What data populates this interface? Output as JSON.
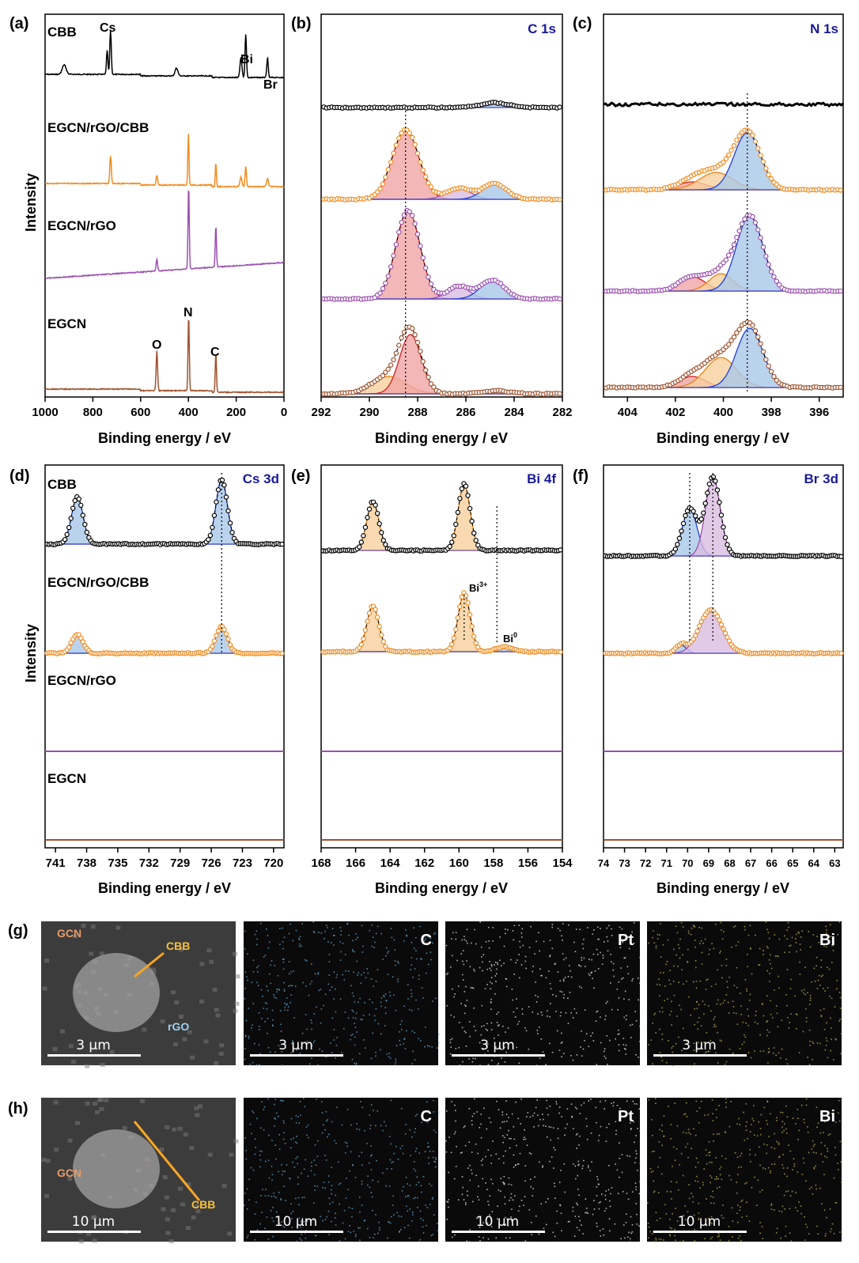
{
  "figure": {
    "panels": {
      "a": {
        "letter": "(a)",
        "title": "",
        "xlabel": "Binding energy / eV",
        "ylabel": "Intensity",
        "xticks": [
          "1000",
          "800",
          "600",
          "400",
          "200",
          "0"
        ]
      },
      "b": {
        "letter": "(b)",
        "title": "C 1s",
        "xlabel": "Binding energy / eV",
        "xticks": [
          "292",
          "290",
          "288",
          "286",
          "284",
          "282"
        ]
      },
      "c": {
        "letter": "(c)",
        "title": "N 1s",
        "xlabel": "Binding energy / eV",
        "xticks": [
          "404",
          "402",
          "400",
          "398",
          "396"
        ]
      },
      "d": {
        "letter": "(d)",
        "title": "Cs 3d",
        "xlabel": "Binding energy / eV",
        "ylabel": "Intensity",
        "xticks": [
          "741",
          "738",
          "735",
          "732",
          "729",
          "726",
          "723",
          "720"
        ]
      },
      "e": {
        "letter": "(e)",
        "title": "Bi 4f",
        "xlabel": "Binding energy / eV",
        "xticks": [
          "168",
          "166",
          "164",
          "162",
          "160",
          "158",
          "156",
          "154"
        ],
        "annotations": {
          "bi3": "Bi",
          "bi3_sup": "3+",
          "bi0": "Bi",
          "bi0_sup": "0"
        }
      },
      "f": {
        "letter": "(f)",
        "title": "Br 3d",
        "xlabel": "Binding energy / eV",
        "xticks": [
          "74",
          "73",
          "72",
          "71",
          "70",
          "69",
          "68",
          "67",
          "66",
          "65",
          "64",
          "63"
        ]
      }
    },
    "samples": [
      "CBB",
      "EGCN/rGO/CBB",
      "EGCN/rGO",
      "EGCN"
    ],
    "survey_peak_labels": {
      "cs": "Cs",
      "bi": "Bi",
      "br": "Br",
      "o": "O",
      "n": "N",
      "c": "C"
    },
    "colors": {
      "CBB": "#000000",
      "EGCN/rGO/CBB": "#f28a1e",
      "EGCN/rGO": "#9b4fb0",
      "EGCN": "#a0522d",
      "title_blue": "#1a1a9c",
      "fit_blue": "#a9c8e8",
      "fit_red": "#f0a5a5",
      "fit_orange": "#f7cf9c",
      "fit_purple": "#d9bde0"
    },
    "micrographs": {
      "g": {
        "letter": "(g)",
        "scale": "3 μm",
        "sem_labels": {
          "gcn": "GCN",
          "cbb": "CBB",
          "rgo": "rGO"
        },
        "maps": [
          "C",
          "Pt",
          "Bi"
        ]
      },
      "h": {
        "letter": "(h)",
        "scale": "10 μm",
        "sem_labels": {
          "gcn": "GCN",
          "cbb": "CBB"
        },
        "maps": [
          "C",
          "Pt",
          "Bi"
        ]
      }
    }
  },
  "chart_data": [
    {
      "type": "line",
      "panel": "a",
      "title": "",
      "xlabel": "Binding energy / eV",
      "ylabel": "Intensity",
      "xlim": [
        1000,
        0
      ],
      "grid": false,
      "series": [
        {
          "name": "CBB",
          "peaks": [
            {
              "label": "Cs",
              "x": 726
            },
            {
              "label": "Bi",
              "x": 160
            },
            {
              "label": "Br",
              "x": 69
            }
          ]
        },
        {
          "name": "EGCN/rGO/CBB",
          "peaks": [
            {
              "x": 726
            },
            {
              "x": 400
            },
            {
              "x": 285
            },
            {
              "x": 160
            }
          ]
        },
        {
          "name": "EGCN/rGO",
          "peaks": [
            {
              "x": 532
            },
            {
              "x": 399
            },
            {
              "x": 285
            }
          ]
        },
        {
          "name": "EGCN",
          "peaks": [
            {
              "label": "O",
              "x": 532
            },
            {
              "label": "N",
              "x": 399
            },
            {
              "label": "C",
              "x": 285
            }
          ]
        }
      ]
    },
    {
      "type": "line",
      "panel": "b",
      "title": "C 1s",
      "xlabel": "Binding energy / eV",
      "xlim": [
        292,
        282
      ],
      "reference_line": 288.5,
      "series": [
        {
          "name": "CBB",
          "components": [
            284.8
          ]
        },
        {
          "name": "EGCN/rGO/CBB",
          "components": [
            288.5,
            286.3,
            284.8
          ]
        },
        {
          "name": "EGCN/rGO",
          "components": [
            288.4,
            286.3,
            284.9
          ]
        },
        {
          "name": "EGCN",
          "components": [
            289.2,
            288.3,
            284.8
          ]
        }
      ]
    },
    {
      "type": "line",
      "panel": "c",
      "title": "N 1s",
      "xlabel": "Binding energy / eV",
      "xlim": [
        405,
        395
      ],
      "reference_line": 399.0,
      "series": [
        {
          "name": "CBB",
          "components": []
        },
        {
          "name": "EGCN/rGO/CBB",
          "components": [
            401.3,
            400.3,
            399.0
          ]
        },
        {
          "name": "EGCN/rGO",
          "components": [
            401.3,
            400.1,
            398.9
          ]
        },
        {
          "name": "EGCN",
          "components": [
            401.3,
            400.1,
            398.9
          ]
        }
      ]
    },
    {
      "type": "line",
      "panel": "d",
      "title": "Cs 3d",
      "xlabel": "Binding energy / eV",
      "xlim": [
        742,
        719
      ],
      "reference_line": 725,
      "series": [
        {
          "name": "CBB",
          "components": [
            738.9,
            725.0
          ]
        },
        {
          "name": "EGCN/rGO/CBB",
          "components": [
            738.9,
            725.0
          ]
        },
        {
          "name": "EGCN/rGO",
          "components": []
        },
        {
          "name": "EGCN",
          "components": []
        }
      ]
    },
    {
      "type": "line",
      "panel": "e",
      "title": "Bi 4f",
      "xlabel": "Binding energy / eV",
      "xlim": [
        168,
        154
      ],
      "reference_lines": [
        {
          "label": "Bi3+",
          "x": 159.7
        },
        {
          "label": "Bi0",
          "x": 157.8
        }
      ],
      "series": [
        {
          "name": "CBB",
          "components": [
            165.0,
            159.7
          ]
        },
        {
          "name": "EGCN/rGO/CBB",
          "components": [
            165.0,
            159.7,
            157.4
          ]
        },
        {
          "name": "EGCN/rGO",
          "components": []
        },
        {
          "name": "EGCN",
          "components": []
        }
      ]
    },
    {
      "type": "line",
      "panel": "f",
      "title": "Br 3d",
      "xlabel": "Binding energy / eV",
      "xlim": [
        74,
        62.6
      ],
      "reference_lines": [
        {
          "x": 69.9
        },
        {
          "x": 68.8
        }
      ],
      "series": [
        {
          "name": "CBB",
          "components": [
            69.9,
            68.8
          ]
        },
        {
          "name": "EGCN/rGO/CBB",
          "components": [
            70.3,
            68.9
          ]
        },
        {
          "name": "EGCN/rGO",
          "components": []
        },
        {
          "name": "EGCN",
          "components": []
        }
      ]
    }
  ]
}
